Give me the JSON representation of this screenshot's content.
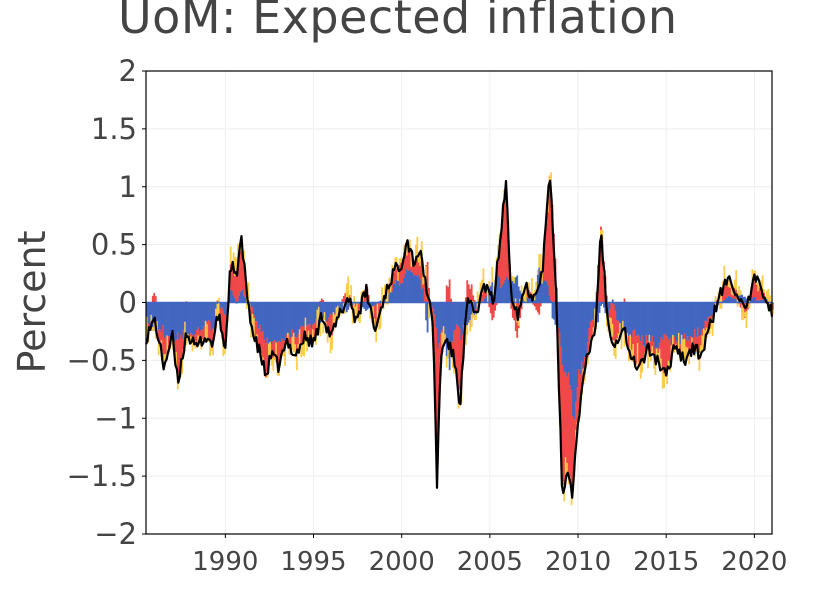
{
  "chart_data": {
    "type": "bar+line",
    "title": "UoM: Expected inflation",
    "xlabel": "",
    "ylabel": "Percent",
    "xlim": [
      1985.5,
      2021.0
    ],
    "ylim": [
      -2,
      2
    ],
    "x_ticks": [
      1990,
      1995,
      2000,
      2005,
      2010,
      2015,
      2020
    ],
    "y_ticks": [
      2,
      1.5,
      1,
      0.5,
      0,
      -0.5,
      -1,
      -1.5,
      -2
    ],
    "y_tick_labels": [
      "2",
      "1.5",
      "1",
      "0.5",
      "0",
      "−0.5",
      "−1",
      "−1.5",
      "−2"
    ],
    "grid": true,
    "colors": {
      "blue": "#4366c0",
      "red": "#f04848",
      "yellow": "#fbcd4b",
      "line": "#000000"
    },
    "line_series": {
      "name": "Expected inflation",
      "points": [
        [
          1985.5,
          -0.3
        ],
        [
          1986.0,
          -0.15
        ],
        [
          1986.5,
          -0.55
        ],
        [
          1987.0,
          -0.3
        ],
        [
          1987.3,
          -0.7
        ],
        [
          1987.8,
          -0.25
        ],
        [
          1988.3,
          -0.4
        ],
        [
          1988.8,
          -0.3
        ],
        [
          1989.3,
          -0.35
        ],
        [
          1989.6,
          -0.1
        ],
        [
          1990.0,
          -0.4
        ],
        [
          1990.3,
          0.35
        ],
        [
          1990.6,
          0.2
        ],
        [
          1990.9,
          0.55
        ],
        [
          1991.2,
          0.1
        ],
        [
          1991.6,
          -0.3
        ],
        [
          1992.0,
          -0.45
        ],
        [
          1992.3,
          -0.65
        ],
        [
          1992.6,
          -0.45
        ],
        [
          1993.0,
          -0.55
        ],
        [
          1993.5,
          -0.35
        ],
        [
          1994.0,
          -0.45
        ],
        [
          1994.5,
          -0.3
        ],
        [
          1995.0,
          -0.35
        ],
        [
          1995.5,
          -0.1
        ],
        [
          1996.0,
          -0.3
        ],
        [
          1996.5,
          -0.1
        ],
        [
          1997.0,
          0.05
        ],
        [
          1997.4,
          -0.15
        ],
        [
          1998.0,
          0.1
        ],
        [
          1998.5,
          -0.25
        ],
        [
          1999.0,
          0.05
        ],
        [
          1999.5,
          0.25
        ],
        [
          2000.0,
          0.35
        ],
        [
          2000.3,
          0.55
        ],
        [
          2000.7,
          0.35
        ],
        [
          2001.0,
          0.45
        ],
        [
          2001.4,
          0.15
        ],
        [
          2001.8,
          -0.25
        ],
        [
          2002.0,
          -1.6
        ],
        [
          2002.2,
          -0.5
        ],
        [
          2002.5,
          -0.3
        ],
        [
          2003.0,
          -0.5
        ],
        [
          2003.3,
          -0.9
        ],
        [
          2003.7,
          0.0
        ],
        [
          2004.2,
          -0.1
        ],
        [
          2004.7,
          0.15
        ],
        [
          2005.2,
          0.0
        ],
        [
          2005.6,
          0.55
        ],
        [
          2005.9,
          1.05
        ],
        [
          2006.2,
          0.1
        ],
        [
          2006.6,
          -0.1
        ],
        [
          2007.0,
          0.15
        ],
        [
          2007.5,
          0.05
        ],
        [
          2008.0,
          0.3
        ],
        [
          2008.4,
          1.15
        ],
        [
          2008.8,
          -0.1
        ],
        [
          2009.1,
          -1.65
        ],
        [
          2009.4,
          -1.45
        ],
        [
          2009.7,
          -1.65
        ],
        [
          2010.0,
          -1.0
        ],
        [
          2010.5,
          -0.5
        ],
        [
          2011.0,
          -0.2
        ],
        [
          2011.3,
          0.65
        ],
        [
          2011.7,
          -0.2
        ],
        [
          2012.1,
          -0.35
        ],
        [
          2012.6,
          -0.2
        ],
        [
          2013.0,
          -0.5
        ],
        [
          2013.5,
          -0.55
        ],
        [
          2014.0,
          -0.4
        ],
        [
          2014.5,
          -0.5
        ],
        [
          2015.0,
          -0.65
        ],
        [
          2015.5,
          -0.35
        ],
        [
          2016.0,
          -0.5
        ],
        [
          2016.5,
          -0.4
        ],
        [
          2017.0,
          -0.45
        ],
        [
          2017.5,
          -0.2
        ],
        [
          2018.0,
          0.05
        ],
        [
          2018.5,
          0.2
        ],
        [
          2019.0,
          0.1
        ],
        [
          2019.5,
          -0.1
        ],
        [
          2020.0,
          0.2
        ],
        [
          2020.5,
          0.1
        ],
        [
          2021.0,
          -0.1
        ]
      ]
    },
    "bar_series": [
      {
        "name": "blue component",
        "color": "#4366c0",
        "values_note": "monthly stacked bars, approximated from line"
      },
      {
        "name": "red component",
        "color": "#f04848"
      },
      {
        "name": "yellow component",
        "color": "#fbcd4b"
      }
    ]
  }
}
